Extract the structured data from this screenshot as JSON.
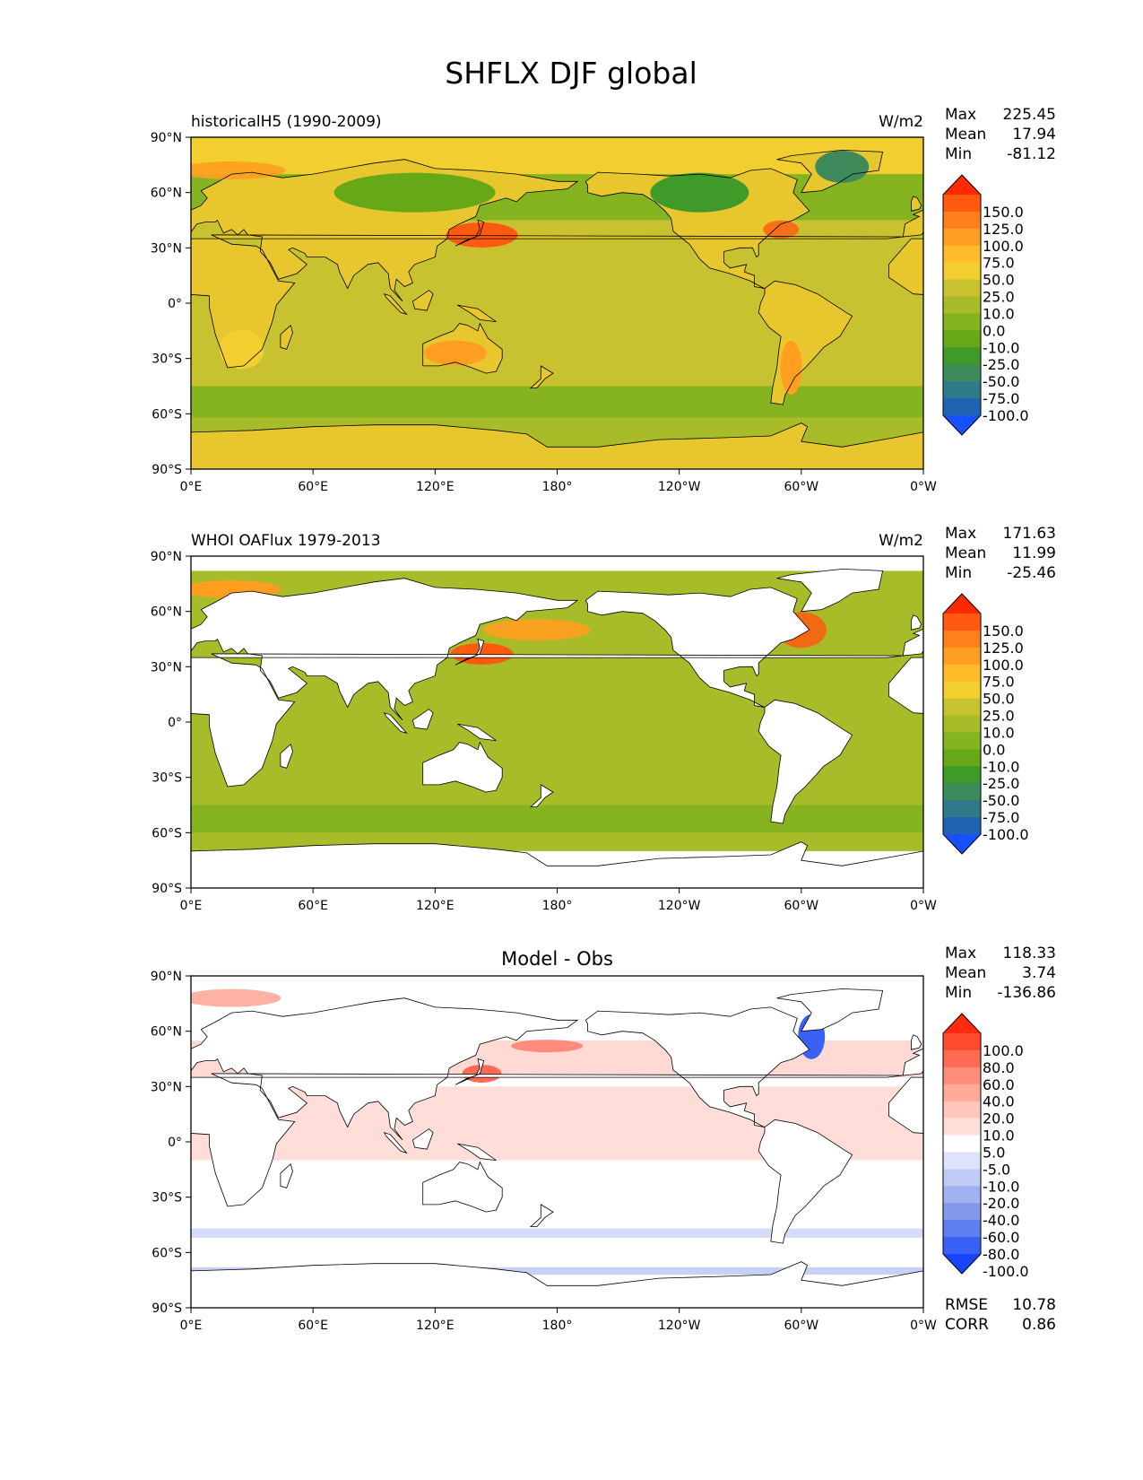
{
  "figure": {
    "title": "SHFLX DJF global",
    "lat_tick_labels": [
      "90°N",
      "60°N",
      "30°N",
      "0°",
      "30°S",
      "60°S",
      "90°S"
    ],
    "lon_tick_labels": [
      "0°E",
      "60°E",
      "120°E",
      "180°",
      "120°W",
      "60°W",
      "0°W"
    ]
  },
  "panels": [
    {
      "id": "model",
      "left_title": "historicalH5 (1990-2009)",
      "center_title": "",
      "units": "W/m2",
      "stats": [
        {
          "label": "Max",
          "value": "225.45"
        },
        {
          "label": "Mean",
          "value": "17.94"
        },
        {
          "label": "Min",
          "value": "-81.12"
        }
      ],
      "colorbar": {
        "labels": [
          "150.0",
          "125.0",
          "100.0",
          "75.0",
          "50.0",
          "25.0",
          "10.0",
          "0.0",
          "-10.0",
          "-25.0",
          "-50.0",
          "-75.0",
          "-100.0"
        ],
        "colors": [
          "#ff2a00",
          "#ff5a10",
          "#ff7f1a",
          "#ff9e20",
          "#ffbc2a",
          "#f2cf2e",
          "#c8c230",
          "#a8bb28",
          "#86b320",
          "#66a818",
          "#3f9a2a",
          "#3f8a5a",
          "#2f7a8a",
          "#1f64b0",
          "#1650ff"
        ]
      },
      "footer_stats": []
    },
    {
      "id": "obs",
      "left_title": "WHOI OAFlux 1979-2013",
      "center_title": "",
      "units": "W/m2",
      "stats": [
        {
          "label": "Max",
          "value": "171.63"
        },
        {
          "label": "Mean",
          "value": "11.99"
        },
        {
          "label": "Min",
          "value": "-25.46"
        }
      ],
      "colorbar": {
        "labels": [
          "150.0",
          "125.0",
          "100.0",
          "75.0",
          "50.0",
          "25.0",
          "10.0",
          "0.0",
          "-10.0",
          "-25.0",
          "-50.0",
          "-75.0",
          "-100.0"
        ],
        "colors": [
          "#ff2a00",
          "#ff5a10",
          "#ff7f1a",
          "#ff9e20",
          "#ffbc2a",
          "#f2cf2e",
          "#c8c230",
          "#a8bb28",
          "#86b320",
          "#66a818",
          "#3f9a2a",
          "#3f8a5a",
          "#2f7a8a",
          "#1f64b0",
          "#1650ff"
        ]
      },
      "footer_stats": []
    },
    {
      "id": "diff",
      "left_title": "",
      "center_title": "Model - Obs",
      "units": "",
      "stats": [
        {
          "label": "Max",
          "value": "118.33"
        },
        {
          "label": "Mean",
          "value": "3.74"
        },
        {
          "label": "Min",
          "value": "-136.86"
        }
      ],
      "colorbar": {
        "labels": [
          "100.0",
          "80.0",
          "60.0",
          "40.0",
          "20.0",
          "10.0",
          "5.0",
          "-5.0",
          "-10.0",
          "-20.0",
          "-40.0",
          "-60.0",
          "-80.0",
          "-100.0"
        ],
        "colors": [
          "#ff2a10",
          "#ff4a30",
          "#ff6a55",
          "#ff8c78",
          "#ffaa9a",
          "#ffc6ba",
          "#ffe0d8",
          "#ffffff",
          "#dde3f8",
          "#c0cbf5",
          "#a2b2f0",
          "#8498ec",
          "#5f7ef0",
          "#3a60f5",
          "#1a45ff"
        ]
      },
      "footer_stats": [
        {
          "label": "RMSE",
          "value": "10.78"
        },
        {
          "label": "CORR",
          "value": "0.86"
        }
      ]
    }
  ],
  "map_colors": {
    "ocean_model": "#a8bb28",
    "ocean_obs": "#a8bb28",
    "band_green": "#86b320",
    "warm_yellow": "#f2cf2e",
    "warm_orange": "#ff9e20",
    "hot_red": "#ff5a10",
    "cold_teal": "#3f8a5a",
    "diff_pink": "#ffd6cf",
    "diff_red": "#ff6a55",
    "diff_blue": "#a2b2f0",
    "diff_strong_blue": "#3a60f5"
  }
}
